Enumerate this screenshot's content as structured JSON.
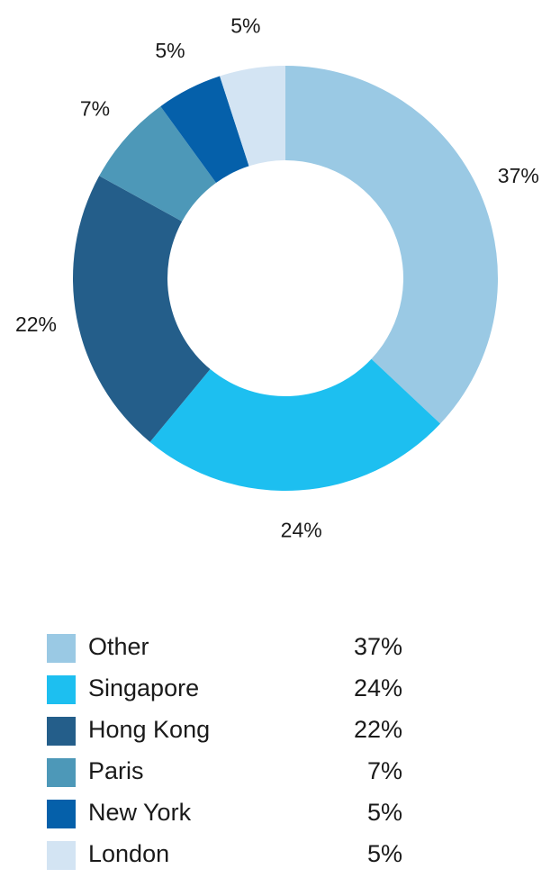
{
  "chart_data": {
    "type": "donut",
    "categories": [
      "Other",
      "Singapore",
      "Hong Kong",
      "Paris",
      "New York",
      "London"
    ],
    "values": [
      37,
      24,
      22,
      7,
      5,
      5
    ],
    "value_labels": [
      "37%",
      "24%",
      "22%",
      "7%",
      "5%",
      "5%"
    ],
    "colors": [
      "#9ac9e4",
      "#1dbff0",
      "#245e8a",
      "#4d98b8",
      "#0560aa",
      "#d3e4f3"
    ]
  }
}
